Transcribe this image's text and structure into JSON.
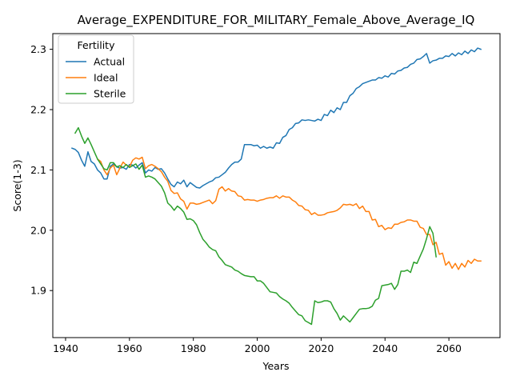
{
  "chart_data": {
    "type": "line",
    "title": "Average_EXPENDITURE_FOR_MILITARY_Female_Above_Average_IQ",
    "xlabel": "Years",
    "ylabel": "Score(1-3)",
    "xlim": [
      1936,
      2076
    ],
    "ylim": [
      1.822,
      2.326
    ],
    "xticks": [
      1940,
      1960,
      1980,
      2000,
      2020,
      2040,
      2060
    ],
    "yticks": [
      1.9,
      2.0,
      2.1,
      2.2,
      2.3
    ],
    "xtick_labels": [
      "1940",
      "1960",
      "1980",
      "2000",
      "2020",
      "2040",
      "2060"
    ],
    "ytick_labels": [
      "1.9",
      "2.0",
      "2.1",
      "2.2",
      "2.3"
    ],
    "grid": false,
    "legend": {
      "title": "Fertility",
      "placement": "top-left"
    },
    "series": [
      {
        "name": "Actual",
        "color": "#1f77b4",
        "x": [
          1942,
          1943,
          1944,
          1945,
          1946,
          1947,
          1948,
          1949,
          1950,
          1951,
          1952,
          1953,
          1954,
          1955,
          1956,
          1957,
          1958,
          1959,
          1960,
          1961,
          1962,
          1963,
          1964,
          1965,
          1966,
          1967,
          1968,
          1969,
          1970,
          1971,
          1972,
          1973,
          1974,
          1975,
          1976,
          1977,
          1978,
          1979,
          1980,
          1981,
          1982,
          1983,
          1984,
          1985,
          1986,
          1987,
          1988,
          1989,
          1990,
          1991,
          1992,
          1993,
          1994,
          1995,
          1996,
          1997,
          1998,
          1999,
          2000,
          2001,
          2002,
          2003,
          2004,
          2005,
          2006,
          2007,
          2008,
          2009,
          2010,
          2011,
          2012,
          2013,
          2014,
          2015,
          2016,
          2017,
          2018,
          2019,
          2020,
          2021,
          2022,
          2023,
          2024,
          2025,
          2026,
          2027,
          2028,
          2029,
          2030,
          2031,
          2032,
          2033,
          2034,
          2035,
          2036,
          2037,
          2038,
          2039,
          2040,
          2041,
          2042,
          2043,
          2044,
          2045,
          2046,
          2047,
          2048,
          2049,
          2050,
          2051,
          2052,
          2053,
          2054,
          2055,
          2056,
          2057,
          2058,
          2059,
          2060,
          2061,
          2062,
          2063,
          2064,
          2065,
          2066,
          2067,
          2068,
          2069,
          2070
        ],
        "values": [
          2.136,
          2.134,
          2.129,
          2.116,
          2.106,
          2.13,
          2.114,
          2.11,
          2.1,
          2.095,
          2.085,
          2.085,
          2.106,
          2.11,
          2.105,
          2.103,
          2.104,
          2.101,
          2.109,
          2.108,
          2.103,
          2.108,
          2.112,
          2.095,
          2.1,
          2.098,
          2.104,
          2.101,
          2.102,
          2.095,
          2.085,
          2.076,
          2.072,
          2.08,
          2.077,
          2.083,
          2.072,
          2.079,
          2.075,
          2.071,
          2.07,
          2.074,
          2.077,
          2.08,
          2.082,
          2.087,
          2.088,
          2.092,
          2.096,
          2.103,
          2.109,
          2.113,
          2.113,
          2.118,
          2.142,
          2.142,
          2.142,
          2.14,
          2.141,
          2.136,
          2.139,
          2.136,
          2.138,
          2.136,
          2.145,
          2.144,
          2.154,
          2.157,
          2.167,
          2.17,
          2.177,
          2.178,
          2.183,
          2.182,
          2.183,
          2.182,
          2.181,
          2.184,
          2.182,
          2.192,
          2.19,
          2.199,
          2.195,
          2.203,
          2.2,
          2.212,
          2.212,
          2.223,
          2.227,
          2.235,
          2.238,
          2.243,
          2.245,
          2.247,
          2.249,
          2.249,
          2.253,
          2.252,
          2.256,
          2.254,
          2.26,
          2.259,
          2.264,
          2.265,
          2.269,
          2.27,
          2.275,
          2.277,
          2.283,
          2.284,
          2.288,
          2.293,
          2.277,
          2.281,
          2.282,
          2.285,
          2.285,
          2.289,
          2.288,
          2.293,
          2.289,
          2.294,
          2.291,
          2.297,
          2.293,
          2.299,
          2.296,
          2.302,
          2.3
        ]
      },
      {
        "name": "Ideal",
        "color": "#ff7f0e",
        "x": [
          1950,
          1951,
          1952,
          1953,
          1954,
          1955,
          1956,
          1957,
          1958,
          1959,
          1960,
          1961,
          1962,
          1963,
          1964,
          1965,
          1966,
          1967,
          1968,
          1969,
          1970,
          1971,
          1972,
          1973,
          1974,
          1975,
          1976,
          1977,
          1978,
          1979,
          1980,
          1981,
          1982,
          1983,
          1984,
          1985,
          1986,
          1987,
          1988,
          1989,
          1990,
          1991,
          1992,
          1993,
          1994,
          1995,
          1996,
          1997,
          1998,
          1999,
          2000,
          2001,
          2002,
          2003,
          2004,
          2005,
          2006,
          2007,
          2008,
          2009,
          2010,
          2011,
          2012,
          2013,
          2014,
          2015,
          2016,
          2017,
          2018,
          2019,
          2020,
          2021,
          2022,
          2023,
          2024,
          2025,
          2026,
          2027,
          2028,
          2029,
          2030,
          2031,
          2032,
          2033,
          2034,
          2035,
          2036,
          2037,
          2038,
          2039,
          2040,
          2041,
          2042,
          2043,
          2044,
          2045,
          2046,
          2047,
          2048,
          2049,
          2050,
          2051,
          2052,
          2053,
          2054,
          2055,
          2056,
          2057,
          2058,
          2059,
          2060,
          2061,
          2062,
          2063,
          2064,
          2065,
          2066,
          2067,
          2068,
          2069,
          2070
        ],
        "values": [
          2.118,
          2.114,
          2.1,
          2.092,
          2.103,
          2.108,
          2.092,
          2.103,
          2.113,
          2.108,
          2.105,
          2.116,
          2.12,
          2.118,
          2.121,
          2.102,
          2.107,
          2.109,
          2.106,
          2.102,
          2.097,
          2.088,
          2.081,
          2.066,
          2.061,
          2.062,
          2.052,
          2.048,
          2.035,
          2.045,
          2.045,
          2.043,
          2.044,
          2.046,
          2.048,
          2.05,
          2.044,
          2.049,
          2.068,
          2.072,
          2.065,
          2.069,
          2.065,
          2.064,
          2.057,
          2.056,
          2.05,
          2.051,
          2.05,
          2.05,
          2.048,
          2.05,
          2.051,
          2.053,
          2.054,
          2.054,
          2.057,
          2.053,
          2.057,
          2.055,
          2.055,
          2.05,
          2.047,
          2.041,
          2.04,
          2.034,
          2.033,
          2.026,
          2.029,
          2.025,
          2.025,
          2.026,
          2.029,
          2.03,
          2.031,
          2.033,
          2.037,
          2.043,
          2.042,
          2.043,
          2.041,
          2.044,
          2.036,
          2.04,
          2.031,
          2.031,
          2.017,
          2.018,
          2.006,
          2.008,
          2.001,
          2.004,
          2.003,
          2.01,
          2.01,
          2.013,
          2.014,
          2.017,
          2.017,
          2.015,
          2.015,
          2.005,
          2.003,
          1.993,
          1.993,
          1.976,
          1.98,
          1.96,
          1.962,
          1.942,
          1.948,
          1.937,
          1.945,
          1.935,
          1.945,
          1.939,
          1.95,
          1.945,
          1.952,
          1.949,
          1.949
        ]
      },
      {
        "name": "Sterile",
        "color": "#2ca02c",
        "x": [
          1943,
          1944,
          1945,
          1946,
          1947,
          1948,
          1949,
          1950,
          1951,
          1952,
          1953,
          1954,
          1955,
          1956,
          1957,
          1958,
          1959,
          1960,
          1961,
          1962,
          1963,
          1964,
          1965,
          1966,
          1967,
          1968,
          1969,
          1970,
          1971,
          1972,
          1973,
          1974,
          1975,
          1976,
          1977,
          1978,
          1979,
          1980,
          1981,
          1982,
          1983,
          1984,
          1985,
          1986,
          1987,
          1988,
          1989,
          1990,
          1991,
          1992,
          1993,
          1994,
          1995,
          1996,
          1997,
          1998,
          1999,
          2000,
          2001,
          2002,
          2003,
          2004,
          2005,
          2006,
          2007,
          2008,
          2009,
          2010,
          2011,
          2012,
          2013,
          2014,
          2015,
          2016,
          2017,
          2018,
          2019,
          2020,
          2021,
          2022,
          2023,
          2024,
          2025,
          2026,
          2027,
          2028,
          2029,
          2030,
          2031,
          2032,
          2033,
          2034,
          2035,
          2036,
          2037,
          2038,
          2039,
          2040,
          2041,
          2042,
          2043,
          2044,
          2045,
          2046,
          2047,
          2048,
          2049,
          2050,
          2051,
          2052,
          2053,
          2054,
          2055,
          2056
        ],
        "values": [
          2.161,
          2.17,
          2.156,
          2.144,
          2.153,
          2.142,
          2.13,
          2.118,
          2.11,
          2.102,
          2.1,
          2.112,
          2.112,
          2.105,
          2.107,
          2.104,
          2.109,
          2.104,
          2.107,
          2.11,
          2.101,
          2.108,
          2.088,
          2.09,
          2.088,
          2.085,
          2.079,
          2.073,
          2.062,
          2.045,
          2.04,
          2.033,
          2.04,
          2.036,
          2.03,
          2.018,
          2.019,
          2.016,
          2.009,
          1.996,
          1.985,
          1.979,
          1.972,
          1.968,
          1.966,
          1.956,
          1.95,
          1.943,
          1.941,
          1.939,
          1.934,
          1.932,
          1.928,
          1.925,
          1.924,
          1.923,
          1.923,
          1.916,
          1.916,
          1.912,
          1.905,
          1.898,
          1.897,
          1.896,
          1.89,
          1.886,
          1.883,
          1.879,
          1.872,
          1.866,
          1.86,
          1.858,
          1.85,
          1.847,
          1.844,
          1.883,
          1.88,
          1.881,
          1.883,
          1.883,
          1.881,
          1.87,
          1.862,
          1.851,
          1.858,
          1.853,
          1.848,
          1.855,
          1.862,
          1.869,
          1.87,
          1.87,
          1.871,
          1.874,
          1.884,
          1.887,
          1.908,
          1.909,
          1.91,
          1.912,
          1.902,
          1.91,
          1.932,
          1.932,
          1.934,
          1.93,
          1.947,
          1.945,
          1.957,
          1.969,
          1.986,
          2.006,
          1.995,
          1.956
        ]
      }
    ]
  }
}
